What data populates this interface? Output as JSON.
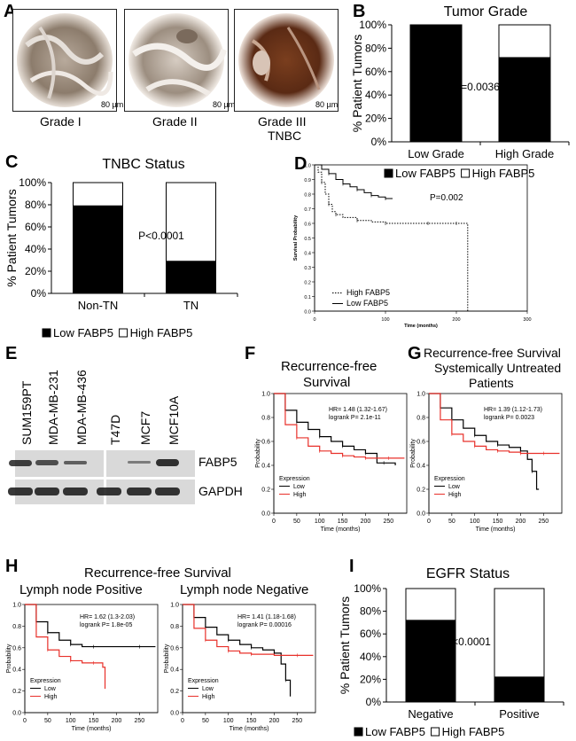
{
  "panels": {
    "A": {
      "label": "A",
      "images": [
        {
          "caption": "Grade I",
          "scale": "80 µm"
        },
        {
          "caption": "Grade II",
          "scale": "80 µm"
        },
        {
          "caption": "Grade III",
          "caption2": "TNBC",
          "scale": "80 µm"
        }
      ]
    },
    "B": {
      "label": "B"
    },
    "C": {
      "label": "C"
    },
    "D": {
      "label": "D"
    },
    "E": {
      "label": "E",
      "lanes": [
        "SUM159PT",
        "MDA-MB-231",
        "MDA-MB-436",
        "T47D",
        "MCF7",
        "MCF10A"
      ],
      "rows": [
        "FABP5",
        "GAPDH"
      ],
      "fabp5_levels": [
        0.75,
        0.6,
        0.45,
        0.0,
        0.2,
        0.85
      ]
    },
    "F": {
      "label": "F",
      "title": [
        "Recurrence-free",
        "Survival"
      ]
    },
    "G": {
      "label": "G",
      "title": [
        "Recurrence-free Survival",
        "Systemically Untreated",
        "Patients"
      ]
    },
    "H": {
      "label": "H",
      "title": "Recurrence-free Survival",
      "sub_left": "Lymph node Positive",
      "sub_right": "Lymph node Negative"
    },
    "I": {
      "label": "I"
    }
  },
  "chart_data": [
    {
      "id": "B",
      "type": "bar",
      "title": "Tumor Grade",
      "ylabel": "% Patient Tumors",
      "categories": [
        "Low Grade",
        "High Grade"
      ],
      "series": [
        {
          "name": "Low FABP5",
          "values": [
            100,
            72
          ],
          "color": "#000000"
        },
        {
          "name": "High FABP5",
          "values": [
            0,
            28
          ],
          "color": "#ffffff"
        }
      ],
      "stacked": true,
      "ylim": [
        0,
        100
      ],
      "yticks": [
        "0%",
        "20%",
        "40%",
        "60%",
        "80%",
        "100%"
      ],
      "annotation": "P=0.0036",
      "legend": [
        "Low FABP5",
        "High FABP5"
      ]
    },
    {
      "id": "C",
      "type": "bar",
      "title": "TNBC Status",
      "ylabel": "% Patient Tumors",
      "categories": [
        "Non-TN",
        "TN"
      ],
      "series": [
        {
          "name": "Low FABP5",
          "values": [
            79,
            29
          ],
          "color": "#000000"
        },
        {
          "name": "High FABP5",
          "values": [
            21,
            71
          ],
          "color": "#ffffff"
        }
      ],
      "stacked": true,
      "ylim": [
        0,
        100
      ],
      "yticks": [
        "0%",
        "20%",
        "40%",
        "60%",
        "80%",
        "100%"
      ],
      "annotation": "P<0.0001",
      "legend": [
        "Low FABP5",
        "High FABP5"
      ]
    },
    {
      "id": "D",
      "type": "line",
      "xlabel": "Time (months)",
      "ylabel": "Survival Probability",
      "xlim": [
        0,
        300
      ],
      "ylim": [
        0,
        1
      ],
      "xticks": [
        "0",
        "100",
        "200",
        "300"
      ],
      "yticks": [
        "0.0",
        "0.1",
        "0.2",
        "0.3",
        "0.4",
        "0.5",
        "0.6",
        "0.7",
        "0.8",
        "0.9",
        "1.0"
      ],
      "annotation": "P=0.002",
      "series": [
        {
          "name": "High FABP5",
          "style": "dotted",
          "x": [
            0,
            5,
            10,
            15,
            20,
            25,
            30,
            40,
            60,
            80,
            100,
            130,
            160,
            190,
            200,
            216,
            216
          ],
          "y": [
            1.0,
            0.95,
            0.88,
            0.8,
            0.73,
            0.68,
            0.66,
            0.64,
            0.62,
            0.61,
            0.6,
            0.6,
            0.6,
            0.6,
            0.6,
            0.6,
            0.0
          ]
        },
        {
          "name": "Low FABP5",
          "style": "solid",
          "x": [
            0,
            10,
            20,
            30,
            40,
            50,
            60,
            70,
            80,
            90,
            100,
            110
          ],
          "y": [
            1.0,
            0.97,
            0.94,
            0.9,
            0.87,
            0.85,
            0.83,
            0.81,
            0.79,
            0.78,
            0.77,
            0.77
          ]
        }
      ]
    },
    {
      "id": "F",
      "type": "line",
      "xlabel": "Time (months)",
      "ylabel": "Probability",
      "xlim": [
        0,
        290
      ],
      "ylim": [
        0,
        1
      ],
      "xticks": [
        "0",
        "50",
        "100",
        "150",
        "200",
        "250"
      ],
      "yticks": [
        "0.0",
        "0.2",
        "0.4",
        "0.6",
        "0.8",
        "1.0"
      ],
      "annotation": [
        "HR= 1.48 (1.32-1.67)",
        "logrank P= 2.1e-11"
      ],
      "legend_title": "Expression",
      "series": [
        {
          "name": "Low",
          "color": "#000000",
          "x": [
            0,
            25,
            50,
            75,
            100,
            125,
            150,
            175,
            200,
            225,
            240,
            265
          ],
          "y": [
            1.0,
            0.86,
            0.76,
            0.7,
            0.64,
            0.6,
            0.56,
            0.53,
            0.5,
            0.42,
            0.42,
            0.4
          ]
        },
        {
          "name": "High",
          "color": "#e8302a",
          "x": [
            0,
            25,
            50,
            75,
            100,
            125,
            150,
            175,
            200,
            225,
            250,
            285
          ],
          "y": [
            1.0,
            0.74,
            0.63,
            0.56,
            0.52,
            0.5,
            0.48,
            0.47,
            0.46,
            0.46,
            0.46,
            0.46
          ]
        }
      ]
    },
    {
      "id": "G",
      "type": "line",
      "xlabel": "Time (months)",
      "ylabel": "Probability",
      "xlim": [
        0,
        290
      ],
      "ylim": [
        0,
        1
      ],
      "xticks": [
        "0",
        "50",
        "100",
        "150",
        "200",
        "250"
      ],
      "yticks": [
        "0.0",
        "0.2",
        "0.4",
        "0.6",
        "0.8",
        "1.0"
      ],
      "annotation": [
        "HR= 1.39 (1.12-1.73)",
        "logrank P= 0.0023"
      ],
      "legend_title": "Expression",
      "series": [
        {
          "name": "Low",
          "color": "#000000",
          "x": [
            0,
            25,
            50,
            75,
            100,
            125,
            150,
            175,
            200,
            215,
            225,
            235,
            240
          ],
          "y": [
            1.0,
            0.88,
            0.78,
            0.71,
            0.65,
            0.6,
            0.57,
            0.55,
            0.52,
            0.45,
            0.35,
            0.2,
            0.2
          ]
        },
        {
          "name": "High",
          "color": "#e8302a",
          "x": [
            0,
            25,
            50,
            75,
            100,
            125,
            150,
            175,
            200,
            225,
            250,
            285
          ],
          "y": [
            1.0,
            0.78,
            0.66,
            0.6,
            0.56,
            0.53,
            0.52,
            0.51,
            0.5,
            0.5,
            0.5,
            0.5
          ]
        }
      ]
    },
    {
      "id": "H-left",
      "type": "line",
      "xlabel": "Time (months)",
      "ylabel": "Probability",
      "xlim": [
        0,
        290
      ],
      "ylim": [
        0,
        1
      ],
      "xticks": [
        "0",
        "50",
        "100",
        "150",
        "200",
        "250"
      ],
      "yticks": [
        "0.0",
        "0.2",
        "0.4",
        "0.6",
        "0.8",
        "1.0"
      ],
      "annotation": [
        "HR= 1.62 (1.3-2.03)",
        "logrank P= 1.8e-05"
      ],
      "legend_title": "Expression",
      "series": [
        {
          "name": "Low",
          "color": "#000000",
          "x": [
            0,
            25,
            50,
            75,
            100,
            125,
            150,
            200,
            250,
            285
          ],
          "y": [
            1.0,
            0.84,
            0.74,
            0.67,
            0.63,
            0.61,
            0.61,
            0.61,
            0.61,
            0.61
          ]
        },
        {
          "name": "High",
          "color": "#e8302a",
          "x": [
            0,
            25,
            50,
            75,
            100,
            125,
            150,
            170,
            175
          ],
          "y": [
            1.0,
            0.7,
            0.58,
            0.52,
            0.48,
            0.46,
            0.46,
            0.42,
            0.22
          ]
        }
      ]
    },
    {
      "id": "H-right",
      "type": "line",
      "xlabel": "Time (months)",
      "ylabel": "Probability",
      "xlim": [
        0,
        290
      ],
      "ylim": [
        0,
        1
      ],
      "xticks": [
        "0",
        "50",
        "100",
        "150",
        "200",
        "250"
      ],
      "yticks": [
        "0.0",
        "0.2",
        "0.4",
        "0.6",
        "0.8",
        "1.0"
      ],
      "annotation": [
        "HR= 1.41 (1.18-1.68)",
        "logrank P= 0.00016"
      ],
      "legend_title": "Expression",
      "series": [
        {
          "name": "Low",
          "color": "#000000",
          "x": [
            0,
            25,
            50,
            75,
            100,
            125,
            150,
            175,
            200,
            215,
            225,
            235
          ],
          "y": [
            1.0,
            0.88,
            0.79,
            0.72,
            0.67,
            0.63,
            0.6,
            0.58,
            0.55,
            0.45,
            0.3,
            0.15
          ]
        },
        {
          "name": "High",
          "color": "#e8302a",
          "x": [
            0,
            25,
            50,
            75,
            100,
            125,
            150,
            200,
            250,
            285
          ],
          "y": [
            1.0,
            0.78,
            0.67,
            0.61,
            0.57,
            0.55,
            0.54,
            0.53,
            0.53,
            0.53
          ]
        }
      ]
    },
    {
      "id": "I",
      "type": "bar",
      "title": "EGFR Status",
      "ylabel": "% Patient Tumors",
      "categories": [
        "Negative",
        "Positive"
      ],
      "series": [
        {
          "name": "Low FABP5",
          "values": [
            72,
            22
          ],
          "color": "#000000"
        },
        {
          "name": "High FABP5",
          "values": [
            28,
            78
          ],
          "color": "#ffffff"
        }
      ],
      "stacked": true,
      "ylim": [
        0,
        100
      ],
      "yticks": [
        "0%",
        "20%",
        "40%",
        "60%",
        "80%",
        "100%"
      ],
      "annotation": "P<0.0001",
      "legend": [
        "Low FABP5",
        "High FABP5"
      ]
    }
  ]
}
